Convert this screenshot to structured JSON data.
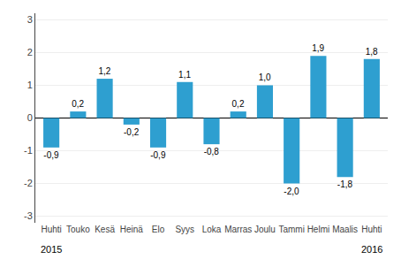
{
  "chart_data": {
    "type": "bar",
    "categories": [
      "Huhti",
      "Touko",
      "Kesä",
      "Heinä",
      "Elo",
      "Syys",
      "Loka",
      "Marras",
      "Joulu",
      "Tammi",
      "Helmi",
      "Maalis",
      "Huhti"
    ],
    "values": [
      -0.9,
      0.2,
      1.2,
      -0.2,
      -0.9,
      1.1,
      -0.8,
      0.2,
      1.0,
      -2.0,
      1.9,
      -1.8,
      1.8
    ],
    "value_labels": [
      "-0,9",
      "0,2",
      "1,2",
      "-0,2",
      "-0,9",
      "1,1",
      "-0,8",
      "0,2",
      "1,0",
      "-2,0",
      "1,9",
      "-1,8",
      "1,8"
    ],
    "data_labels": true,
    "color": "#2E9FD0",
    "ylim": [
      -3.2,
      3.2
    ],
    "yticks": [
      -3,
      -2,
      -1,
      0,
      1,
      2,
      3
    ],
    "grid": true,
    "annotations": [
      {
        "text": "2015",
        "x": 0
      },
      {
        "text": "2016",
        "x": 12
      }
    ]
  }
}
